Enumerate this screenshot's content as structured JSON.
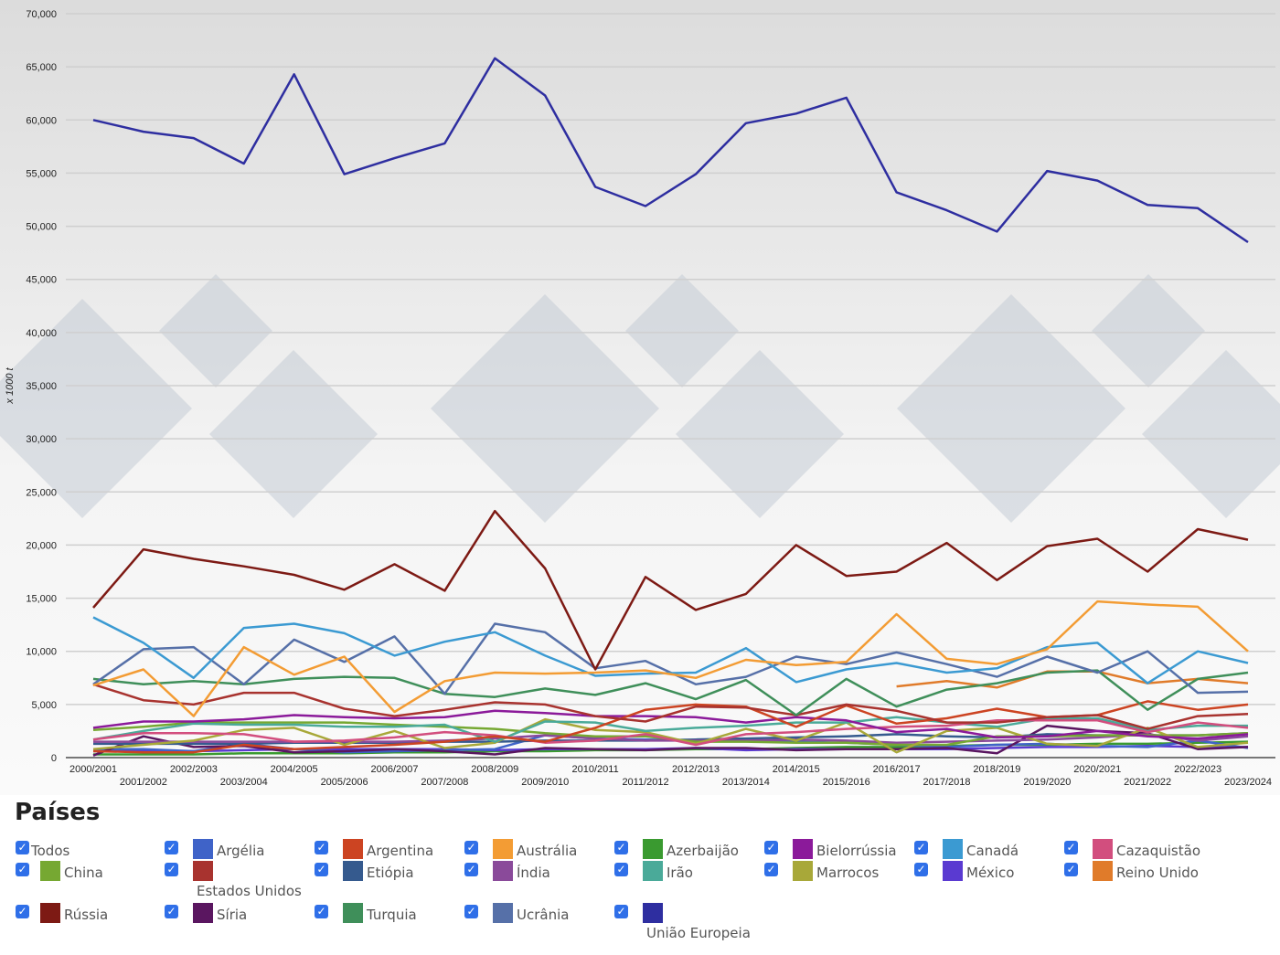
{
  "chart_data": {
    "type": "line",
    "ylabel": "x 1000 t",
    "ylim": [
      0,
      70000
    ],
    "yticks": [
      "0",
      "5,000",
      "10,000",
      "15,000",
      "20,000",
      "25,000",
      "30,000",
      "35,000",
      "40,000",
      "45,000",
      "50,000",
      "55,000",
      "60,000",
      "65,000",
      "70,000"
    ],
    "grid": true,
    "categories": [
      "2000/2001",
      "2001/2002",
      "2002/2003",
      "2003/2004",
      "2004/2005",
      "2005/2006",
      "2006/2007",
      "2007/2008",
      "2008/2009",
      "2009/2010",
      "2010/2011",
      "2011/2012",
      "2012/2013",
      "2013/2014",
      "2014/2015",
      "2015/2016",
      "2016/2017",
      "2017/2018",
      "2018/2019",
      "2019/2020",
      "2020/2021",
      "2021/2022",
      "2022/2023",
      "2023/2024"
    ],
    "series": [
      {
        "name": "União Europeia",
        "color": "#2e2ea0",
        "values": [
          60000,
          58900,
          58300,
          55900,
          64300,
          54900,
          56400,
          57800,
          65800,
          62300,
          53700,
          51900,
          54900,
          59700,
          60600,
          62100,
          53200,
          51500,
          49500,
          55200,
          54300,
          52000,
          51700,
          48500
        ]
      },
      {
        "name": "Rússia",
        "color": "#7d1a14",
        "values": [
          14100,
          19600,
          18700,
          18000,
          17200,
          15800,
          18200,
          15700,
          23200,
          17800,
          8300,
          17000,
          13900,
          15400,
          20000,
          17100,
          17500,
          20200,
          16700,
          19900,
          20600,
          17500,
          21500,
          20500
        ]
      },
      {
        "name": "Austrália",
        "color": "#f39c34",
        "values": [
          6800,
          8300,
          3900,
          10400,
          7800,
          9500,
          4300,
          7200,
          8000,
          7900,
          8000,
          8200,
          7500,
          9200,
          8700,
          9000,
          13500,
          9300,
          8800,
          10200,
          14700,
          14400,
          14200,
          10000
        ]
      },
      {
        "name": "Canadá",
        "color": "#3b9ad2",
        "values": [
          13200,
          10800,
          7500,
          12200,
          12600,
          11700,
          9600,
          10900,
          11800,
          9600,
          7700,
          7900,
          8000,
          10300,
          7100,
          8300,
          8900,
          8000,
          8400,
          10400,
          10800,
          7000,
          10000,
          8900
        ]
      },
      {
        "name": "Ucrânia",
        "color": "#5670a8",
        "values": [
          6900,
          10200,
          10400,
          6900,
          11100,
          9000,
          11400,
          6000,
          12600,
          11800,
          8400,
          9100,
          6900,
          7600,
          9500,
          8800,
          9900,
          8800,
          7600,
          9500,
          8000,
          10000,
          6100,
          6200
        ]
      },
      {
        "name": "Turquia",
        "color": "#3f8f5a",
        "values": [
          7400,
          6900,
          7200,
          6900,
          7400,
          7600,
          7500,
          6000,
          5700,
          6500,
          5900,
          7000,
          5500,
          7300,
          4000,
          7400,
          4800,
          6400,
          7000,
          8000,
          8200,
          4500,
          7400,
          8000
        ]
      },
      {
        "name": "Reino Unido",
        "color": "#e07b2a",
        "values": [
          null,
          null,
          null,
          null,
          null,
          null,
          null,
          null,
          null,
          null,
          null,
          null,
          null,
          null,
          null,
          null,
          6700,
          7200,
          6600,
          8100,
          8100,
          7000,
          7400,
          7000
        ]
      },
      {
        "name": "Estados Unidos",
        "color": "#a8332f",
        "values": [
          6900,
          5400,
          5000,
          6100,
          6100,
          4600,
          3900,
          4500,
          5200,
          5000,
          3900,
          3400,
          4800,
          4700,
          4000,
          5000,
          4400,
          3300,
          3300,
          3800,
          4000,
          2700,
          3900,
          4100
        ]
      },
      {
        "name": "Argentina",
        "color": "#cc4422",
        "values": [
          600,
          500,
          500,
          1200,
          800,
          1000,
          1200,
          1500,
          2000,
          1500,
          2800,
          4500,
          5000,
          4800,
          2900,
          4900,
          3200,
          3700,
          4600,
          3800,
          4000,
          5300,
          4500,
          5000
        ]
      },
      {
        "name": "Bielorrússia",
        "color": "#8b1a9a",
        "values": [
          2800,
          3400,
          3400,
          3600,
          4000,
          3800,
          3700,
          3800,
          4400,
          4200,
          3900,
          3900,
          3800,
          3300,
          3800,
          3500,
          2400,
          2700,
          1900,
          2000,
          2500,
          2000,
          1800,
          2200
        ]
      },
      {
        "name": "Cazaquistão",
        "color": "#d24e7e",
        "values": [
          1700,
          2300,
          2300,
          2200,
          1500,
          1600,
          1900,
          2400,
          2100,
          1400,
          1600,
          2200,
          1200,
          2200,
          2400,
          2700,
          2900,
          3000,
          3500,
          3500,
          3500,
          2400,
          3300,
          2800
        ]
      },
      {
        "name": "Irão",
        "color": "#4aaa99",
        "values": [
          1700,
          2500,
          3200,
          3100,
          3100,
          2900,
          2900,
          3100,
          1500,
          3400,
          3300,
          2500,
          2800,
          3000,
          3300,
          3300,
          3800,
          3300,
          2900,
          3700,
          3700,
          2600,
          3000,
          3000
        ]
      },
      {
        "name": "Marrocos",
        "color": "#a8a839",
        "values": [
          800,
          1200,
          1600,
          2600,
          2800,
          1200,
          2500,
          900,
          1400,
          3600,
          2600,
          2400,
          1300,
          2700,
          1600,
          3300,
          500,
          2500,
          2800,
          1300,
          1100,
          2800,
          1000,
          1400
        ]
      },
      {
        "name": "China",
        "color": "#76a832",
        "values": [
          2600,
          2900,
          3300,
          3300,
          3300,
          3300,
          3100,
          2900,
          2700,
          2300,
          2000,
          2000,
          1500,
          1500,
          1400,
          1400,
          1200,
          1200,
          2000,
          2000,
          2100,
          2100,
          2100,
          2300
        ]
      },
      {
        "name": "Índia",
        "color": "#8a4a9a",
        "values": [
          1500,
          1500,
          1500,
          1500,
          1500,
          1500,
          1500,
          1600,
          1800,
          2100,
          1800,
          1600,
          1600,
          1600,
          1700,
          1600,
          1400,
          1500,
          1600,
          1700,
          1900,
          2200,
          1600,
          2000
        ]
      },
      {
        "name": "Etiópia",
        "color": "#355a8e",
        "values": [
          1300,
          1300,
          1300,
          1300,
          1400,
          1400,
          1400,
          1500,
          1500,
          1600,
          1600,
          1600,
          1700,
          1800,
          1900,
          2000,
          2200,
          2000,
          1900,
          2200,
          2100,
          2100,
          2100,
          2300
        ]
      },
      {
        "name": "Síria",
        "color": "#5a1660",
        "values": [
          200,
          2000,
          1000,
          1100,
          500,
          600,
          800,
          600,
          300,
          900,
          800,
          700,
          900,
          900,
          700,
          800,
          800,
          900,
          400,
          3000,
          2500,
          2300,
          800,
          1000
        ]
      },
      {
        "name": "Argélia",
        "color": "#3f63c8",
        "values": [
          800,
          800,
          600,
          1300,
          800,
          500,
          600,
          700,
          800,
          2100,
          1800,
          1700,
          1600,
          1600,
          1500,
          1400,
          1200,
          1000,
          1200,
          1300,
          1100,
          1000,
          1600,
          900
        ]
      },
      {
        "name": "México",
        "color": "#5a3ad1",
        "values": [
          600,
          600,
          600,
          700,
          800,
          800,
          800,
          800,
          700,
          800,
          800,
          800,
          900,
          700,
          800,
          800,
          800,
          800,
          900,
          1000,
          1000,
          1100,
          1000,
          1000
        ]
      },
      {
        "name": "Azerbaijão",
        "color": "#3a9a30",
        "values": [
          300,
          300,
          300,
          400,
          400,
          400,
          500,
          500,
          600,
          600,
          700,
          700,
          800,
          800,
          900,
          1000,
          1000,
          1100,
          1200,
          1200,
          1300,
          1300,
          1400,
          1500
        ]
      }
    ]
  },
  "legend": {
    "title": "Países",
    "items": [
      {
        "label": "Todos"
      },
      {
        "label": "Argélia",
        "color": "#3f63c8"
      },
      {
        "label": "Argentina",
        "color": "#cc4422"
      },
      {
        "label": "Austrália",
        "color": "#f39c34"
      },
      {
        "label": "Azerbaijão",
        "color": "#3a9a30"
      },
      {
        "label": "Bielorrússia",
        "color": "#8b1a9a"
      },
      {
        "label": "Canadá",
        "color": "#3b9ad2"
      },
      {
        "label": "Cazaquistão",
        "color": "#d24e7e"
      },
      {
        "label": "China",
        "color": "#76a832"
      },
      {
        "label": "Estados Unidos",
        "color": "#a8332f"
      },
      {
        "label": "Etiópia",
        "color": "#355a8e"
      },
      {
        "label": "Índia",
        "color": "#8a4a9a"
      },
      {
        "label": "Irão",
        "color": "#4aaa99"
      },
      {
        "label": "Marrocos",
        "color": "#a8a839"
      },
      {
        "label": "México",
        "color": "#5a3ad1"
      },
      {
        "label": "Reino Unido",
        "color": "#e07b2a"
      },
      {
        "label": "Rússia",
        "color": "#7d1a14"
      },
      {
        "label": "Síria",
        "color": "#5a1660"
      },
      {
        "label": "Turquia",
        "color": "#3f8f5a"
      },
      {
        "label": "Ucrânia",
        "color": "#5670a8"
      },
      {
        "label": "União Europeia",
        "color": "#2e2ea0"
      }
    ]
  }
}
